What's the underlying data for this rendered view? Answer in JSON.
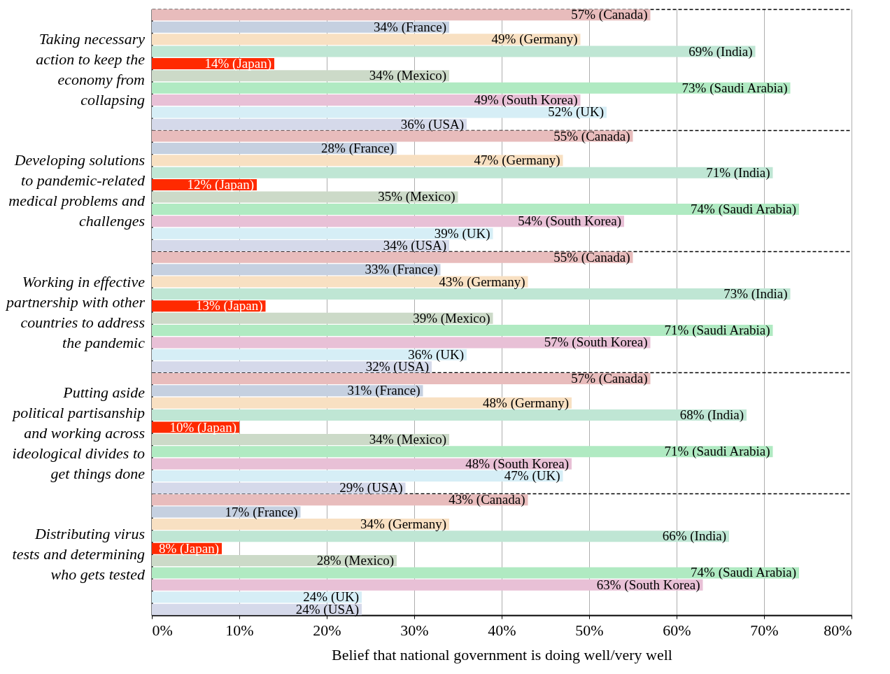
{
  "chart_data": {
    "type": "bar",
    "orientation": "horizontal",
    "xlabel": "Belief that national government is doing well/very well",
    "categories": [
      "Taking necessary action to keep the economy from collapsing",
      "Developing solutions to pandemic-related medical problems and challenges",
      "Working in effective partnership with other countries to address the pandemic",
      "Putting aside political partisanship and working across ideological divides to get things done",
      "Distributing virus tests and determining who gets tested"
    ],
    "series": [
      {
        "color": "#e8bcbc",
        "values": [
          57,
          55,
          55,
          57,
          43
        ],
        "value_labels": [
          "57% (Canada)",
          "55% (Canada)",
          "55% (Canada)",
          "57% (Canada)",
          "43% (Canada)"
        ]
      },
      {
        "color": "#c5d0e0",
        "values": [
          34,
          28,
          33,
          31,
          17
        ],
        "value_labels": [
          "34% (France)",
          "28% (France)",
          "33% (France)",
          "31% (France)",
          "17% (France)"
        ]
      },
      {
        "color": "#f8e0c2",
        "values": [
          49,
          47,
          43,
          48,
          34
        ],
        "value_labels": [
          "49% (Germany)",
          "47% (Germany)",
          "43% (Germany)",
          "48% (Germany)",
          "34% (Germany)"
        ]
      },
      {
        "color": "#bfe6d4",
        "values": [
          69,
          71,
          73,
          68,
          66
        ],
        "value_labels": [
          "69% (India)",
          "71% (India)",
          "73% (India)",
          "68% (India)",
          "66% (India)"
        ]
      },
      {
        "color": "#ff2a00",
        "values": [
          14,
          12,
          13,
          10,
          8
        ],
        "value_labels": [
          "14% (Japan)",
          "12% (Japan)",
          "13% (Japan)",
          "10% (Japan)",
          "8% (Japan)"
        ]
      },
      {
        "color": "#ccdac8",
        "values": [
          34,
          35,
          39,
          34,
          28
        ],
        "value_labels": [
          "34% (Mexico)",
          "35% (Mexico)",
          "39% (Mexico)",
          "34% (Mexico)",
          "28% (Mexico)"
        ]
      },
      {
        "color": "#b0eac2",
        "values": [
          73,
          74,
          71,
          71,
          74
        ],
        "value_labels": [
          "73% (Saudi Arabia)",
          "74% (Saudi Arabia)",
          "71% (Saudi Arabia)",
          "71% (Saudi Arabia)",
          "74% (Saudi Arabia)"
        ]
      },
      {
        "color": "#e8c0d6",
        "values": [
          49,
          54,
          57,
          48,
          63
        ],
        "value_labels": [
          "49% (South Korea)",
          "54% (South Korea)",
          "57% (South Korea)",
          "48% (South Korea)",
          "63% (South Korea)"
        ]
      },
      {
        "color": "#d6eef6",
        "values": [
          52,
          39,
          36,
          47,
          24
        ],
        "value_labels": [
          "52% (UK)",
          "39% (UK)",
          "36% (UK)",
          "47% (UK)",
          "24% (UK)"
        ]
      },
      {
        "color": "#d5d9ea",
        "values": [
          36,
          34,
          32,
          29,
          24
        ],
        "value_labels": [
          "36% (USA)",
          "34% (USA)",
          "32% (USA)",
          "29% (USA)",
          "24% (USA)"
        ]
      }
    ],
    "xlim": [
      0,
      80
    ],
    "xticks": [
      {
        "value": 0,
        "label": "0%"
      },
      {
        "value": 10,
        "label": "10%"
      },
      {
        "value": 20,
        "label": "20%"
      },
      {
        "value": 30,
        "label": "30%"
      },
      {
        "value": 40,
        "label": "40%"
      },
      {
        "value": 50,
        "label": "50%"
      },
      {
        "value": 60,
        "label": "60%"
      },
      {
        "value": 70,
        "label": "70%"
      },
      {
        "value": 80,
        "label": "80%"
      }
    ],
    "grid": true
  }
}
